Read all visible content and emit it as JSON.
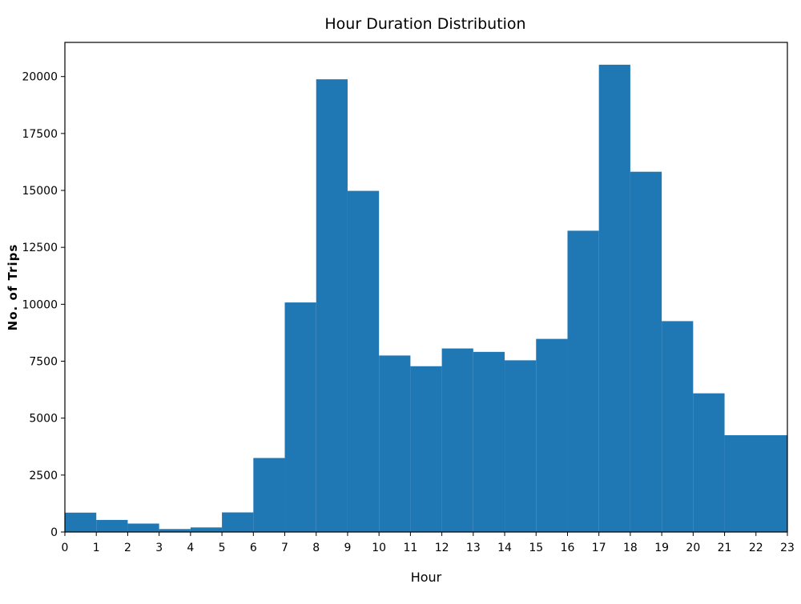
{
  "chart_data": {
    "type": "bar",
    "title": "Hour Duration Distribution",
    "xlabel": "Hour",
    "ylabel": "No. of Trips",
    "x_ticks": [
      "0",
      "1",
      "2",
      "3",
      "4",
      "5",
      "6",
      "7",
      "8",
      "9",
      "10",
      "11",
      "12",
      "13",
      "14",
      "15",
      "16",
      "17",
      "18",
      "19",
      "20",
      "21",
      "22",
      "23"
    ],
    "y_ticks": [
      "0",
      "2500",
      "5000",
      "7500",
      "10000",
      "12500",
      "15000",
      "17500",
      "20000"
    ],
    "xlim": [
      0,
      23
    ],
    "ylim": [
      0,
      21500
    ],
    "bins": [
      {
        "start": 0,
        "end": 1,
        "value": 850
      },
      {
        "start": 1,
        "end": 2,
        "value": 530
      },
      {
        "start": 2,
        "end": 3,
        "value": 370
      },
      {
        "start": 3,
        "end": 4,
        "value": 130
      },
      {
        "start": 4,
        "end": 5,
        "value": 200
      },
      {
        "start": 5,
        "end": 6,
        "value": 860
      },
      {
        "start": 6,
        "end": 7,
        "value": 3250
      },
      {
        "start": 7,
        "end": 8,
        "value": 10080
      },
      {
        "start": 8,
        "end": 9,
        "value": 19880
      },
      {
        "start": 9,
        "end": 10,
        "value": 14980
      },
      {
        "start": 10,
        "end": 11,
        "value": 7750
      },
      {
        "start": 11,
        "end": 12,
        "value": 7280
      },
      {
        "start": 12,
        "end": 13,
        "value": 8060
      },
      {
        "start": 13,
        "end": 14,
        "value": 7910
      },
      {
        "start": 14,
        "end": 15,
        "value": 7540
      },
      {
        "start": 15,
        "end": 16,
        "value": 8480
      },
      {
        "start": 16,
        "end": 17,
        "value": 13230
      },
      {
        "start": 17,
        "end": 18,
        "value": 20520
      },
      {
        "start": 18,
        "end": 19,
        "value": 15820
      },
      {
        "start": 19,
        "end": 20,
        "value": 9260
      },
      {
        "start": 20,
        "end": 21,
        "value": 6090
      },
      {
        "start": 21,
        "end": 23,
        "value": 4250
      }
    ],
    "bar_color": "#1f77b4",
    "grid": false
  }
}
